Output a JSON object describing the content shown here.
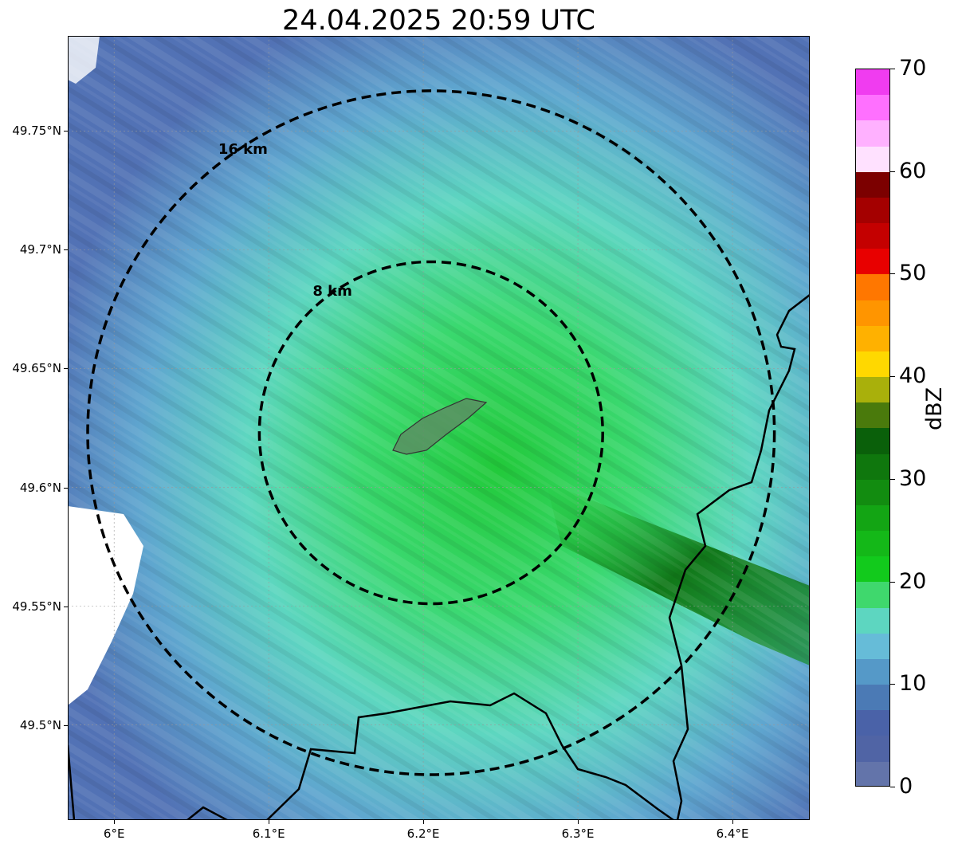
{
  "title": "24.04.2025 20:59 UTC",
  "map": {
    "lon_range": [
      5.97,
      6.45
    ],
    "lat_range": [
      49.46,
      49.79
    ],
    "center": {
      "lon": 6.205,
      "lat": 49.623
    },
    "x_ticks": [
      "6°E",
      "6.1°E",
      "6.2°E",
      "6.3°E",
      "6.4°E"
    ],
    "y_ticks": [
      "49.75°N",
      "49.7°N",
      "49.65°N",
      "49.6°N",
      "49.55°N",
      "49.5°N"
    ],
    "rings": [
      {
        "label": "8 km",
        "radius_km": 8
      },
      {
        "label": "16 km",
        "radius_km": 16
      }
    ],
    "gridlines": true,
    "background_echo_color": "#5f80c4"
  },
  "colorbar": {
    "label": "dBZ",
    "ticks": [
      "0",
      "10",
      "20",
      "30",
      "40",
      "50",
      "60",
      "70"
    ],
    "range": [
      0,
      70
    ],
    "colors": [
      "#6374aa",
      "#5064a5",
      "#4a62a8",
      "#4b7ab5",
      "#5599c8",
      "#66bcd8",
      "#5dd6c0",
      "#3fd86d",
      "#12ca1c",
      "#14b818",
      "#13a514",
      "#128c10",
      "#0f770d",
      "#0a600a",
      "#4a7a0c",
      "#a9b00b",
      "#ffd800",
      "#ffb100",
      "#ff9500",
      "#ff7700",
      "#e80000",
      "#c40000",
      "#a40000",
      "#7c0000",
      "#ffe1ff",
      "#ffb1ff",
      "#ff70ff",
      "#f03cf0"
    ]
  }
}
